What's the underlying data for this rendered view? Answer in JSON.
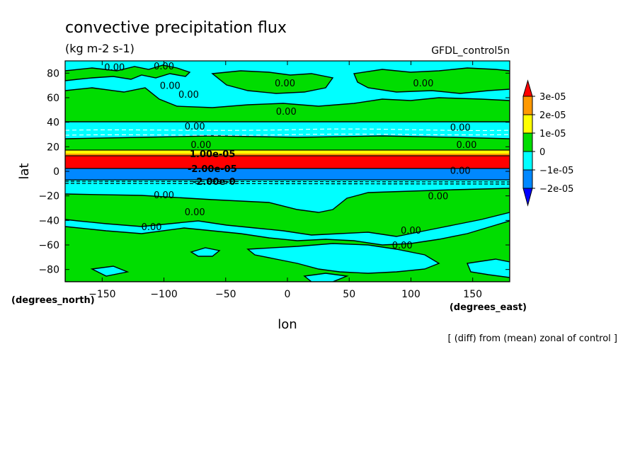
{
  "chart_data": {
    "type": "heatmap",
    "title": "convective precipitation flux",
    "units": "(kg m-2 s-1)",
    "model": "GFDL_control5n",
    "xlabel": "lon",
    "ylabel": "lat",
    "x_unit_label": "(degrees_east)",
    "y_unit_label": "(degrees_north)",
    "note": "[ (diff) from (mean) zonal of control ]",
    "xlim": [
      -180,
      180
    ],
    "ylim": [
      -90,
      90
    ],
    "xticks": [
      -150,
      -100,
      -50,
      0,
      50,
      100,
      150
    ],
    "yticks": [
      -80,
      -60,
      -40,
      -20,
      0,
      20,
      40,
      60,
      80
    ],
    "colorbar": {
      "labels": [
        "3e-05",
        "2e-05",
        "1e-05",
        "0",
        "-1e-05",
        "-2e-05"
      ],
      "colors": [
        "#ff0000",
        "#ff9900",
        "#ffff00",
        "#00dd00",
        "#00ffff",
        "#0088ff",
        "#0000ff"
      ]
    },
    "contour_labels": [
      "0.00",
      "0.00",
      "0.00",
      "0.00",
      "0.00",
      "0.00",
      "0.00",
      "0.00",
      "0.00",
      "0.00",
      "0.00",
      "0.00",
      "0.00",
      "0.00",
      "0.00",
      "0.00",
      "0.00",
      "0.00"
    ],
    "zonal_bands": [
      {
        "lat_from": 90,
        "lat_to": 14,
        "level": "green-cyan patches"
      },
      {
        "lat_from": 14,
        "lat_to": 12,
        "level": "1e-05 to 2e-05"
      },
      {
        "lat_from": 12,
        "lat_to": 1,
        "level": ">3e-05"
      },
      {
        "lat_from": 1,
        "lat_to": -9,
        "level": "-2e-05 to -1e-05"
      },
      {
        "lat_from": -9,
        "lat_to": -90,
        "level": "green-cyan patches"
      }
    ]
  }
}
